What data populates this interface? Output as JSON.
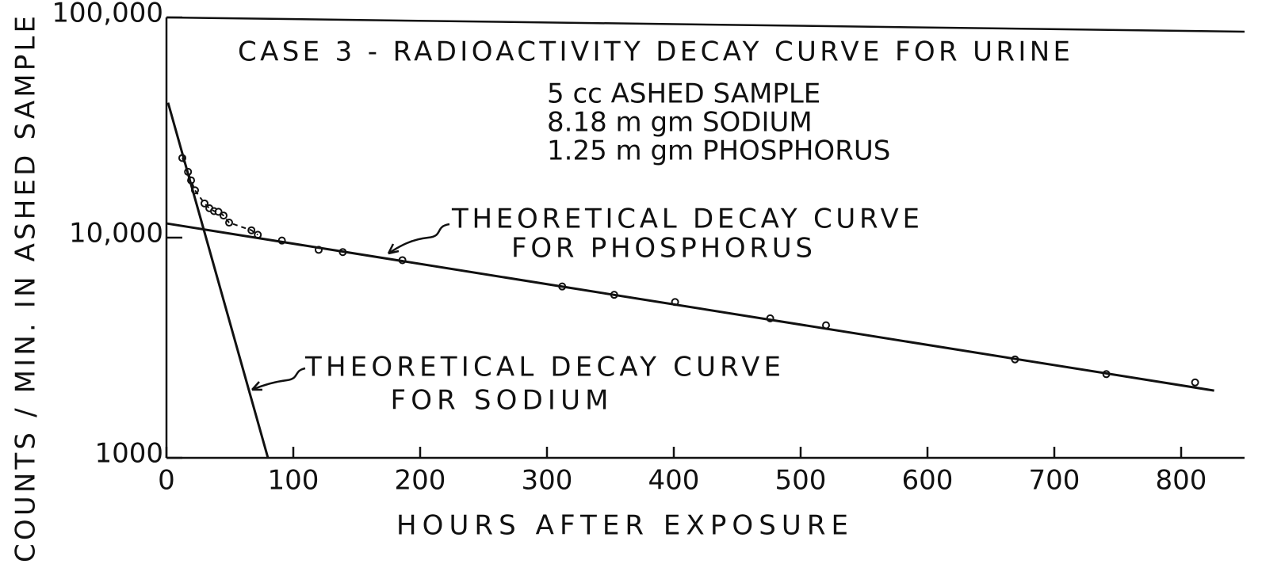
{
  "chart_data": {
    "type": "line",
    "title": "CASE 3 - RADIOACTIVITY DECAY CURVE FOR URINE",
    "subtitle": [
      "5 cc ASHED SAMPLE",
      "8.18 m gm SODIUM",
      "1.25 m gm PHOSPHORUS"
    ],
    "xlabel": "HOURS AFTER EXPOSURE",
    "ylabel": "COUNTS / MIN. IN ASHED SAMPLE",
    "annotations": [
      {
        "text": [
          "THEORETICAL DECAY CURVE",
          "FOR PHOSPHORUS"
        ]
      },
      {
        "text": [
          "THEORETICAL DECAY CURVE",
          "FOR SODIUM"
        ]
      }
    ],
    "ylog": true,
    "xlim": [
      0,
      850
    ],
    "ylim": [
      1000,
      100000
    ],
    "xticks": [
      0,
      100,
      200,
      300,
      400,
      500,
      600,
      700,
      800
    ],
    "yticks": [
      1000,
      {
        "value": 10000,
        "label": "10,000"
      },
      {
        "value": 100000,
        "label": "100,000"
      }
    ],
    "series": [
      {
        "color": "#111111",
        "marker": "circle",
        "line": "none",
        "x": [
          12.5,
          17,
          19.4,
          22.5,
          30,
          33.8,
          37.5,
          41,
          45,
          49.4,
          67,
          72,
          91,
          120,
          139,
          186,
          312,
          353,
          401,
          476,
          520,
          669,
          741,
          811
        ],
        "values": [
          23000,
          19900,
          18200,
          16400,
          14300,
          13600,
          13200,
          13100,
          12600,
          11700,
          10800,
          10300,
          9700,
          8800,
          8600,
          7900,
          6000,
          5500,
          5100,
          4300,
          4000,
          2800,
          2400,
          2200
        ]
      },
      {
        "color": "#111111",
        "marker": "none",
        "line": "dashed",
        "x": [
          12.5,
          17,
          19.4,
          22.5,
          30,
          33.8,
          37.5,
          41,
          45,
          49.4,
          67,
          72
        ],
        "values": [
          23000,
          19900,
          18200,
          16400,
          14300,
          13600,
          13200,
          13100,
          12600,
          11700,
          10800,
          10300
        ]
      },
      {
        "color": "#111111",
        "marker": "none",
        "line": "solid",
        "x": [
          0,
          826
        ],
        "values": [
          11600,
          2020
        ]
      },
      {
        "color": "#111111",
        "marker": "none",
        "line": "solid",
        "x": [
          1.25,
          80
        ],
        "values": [
          41000,
          1000
        ]
      }
    ]
  }
}
